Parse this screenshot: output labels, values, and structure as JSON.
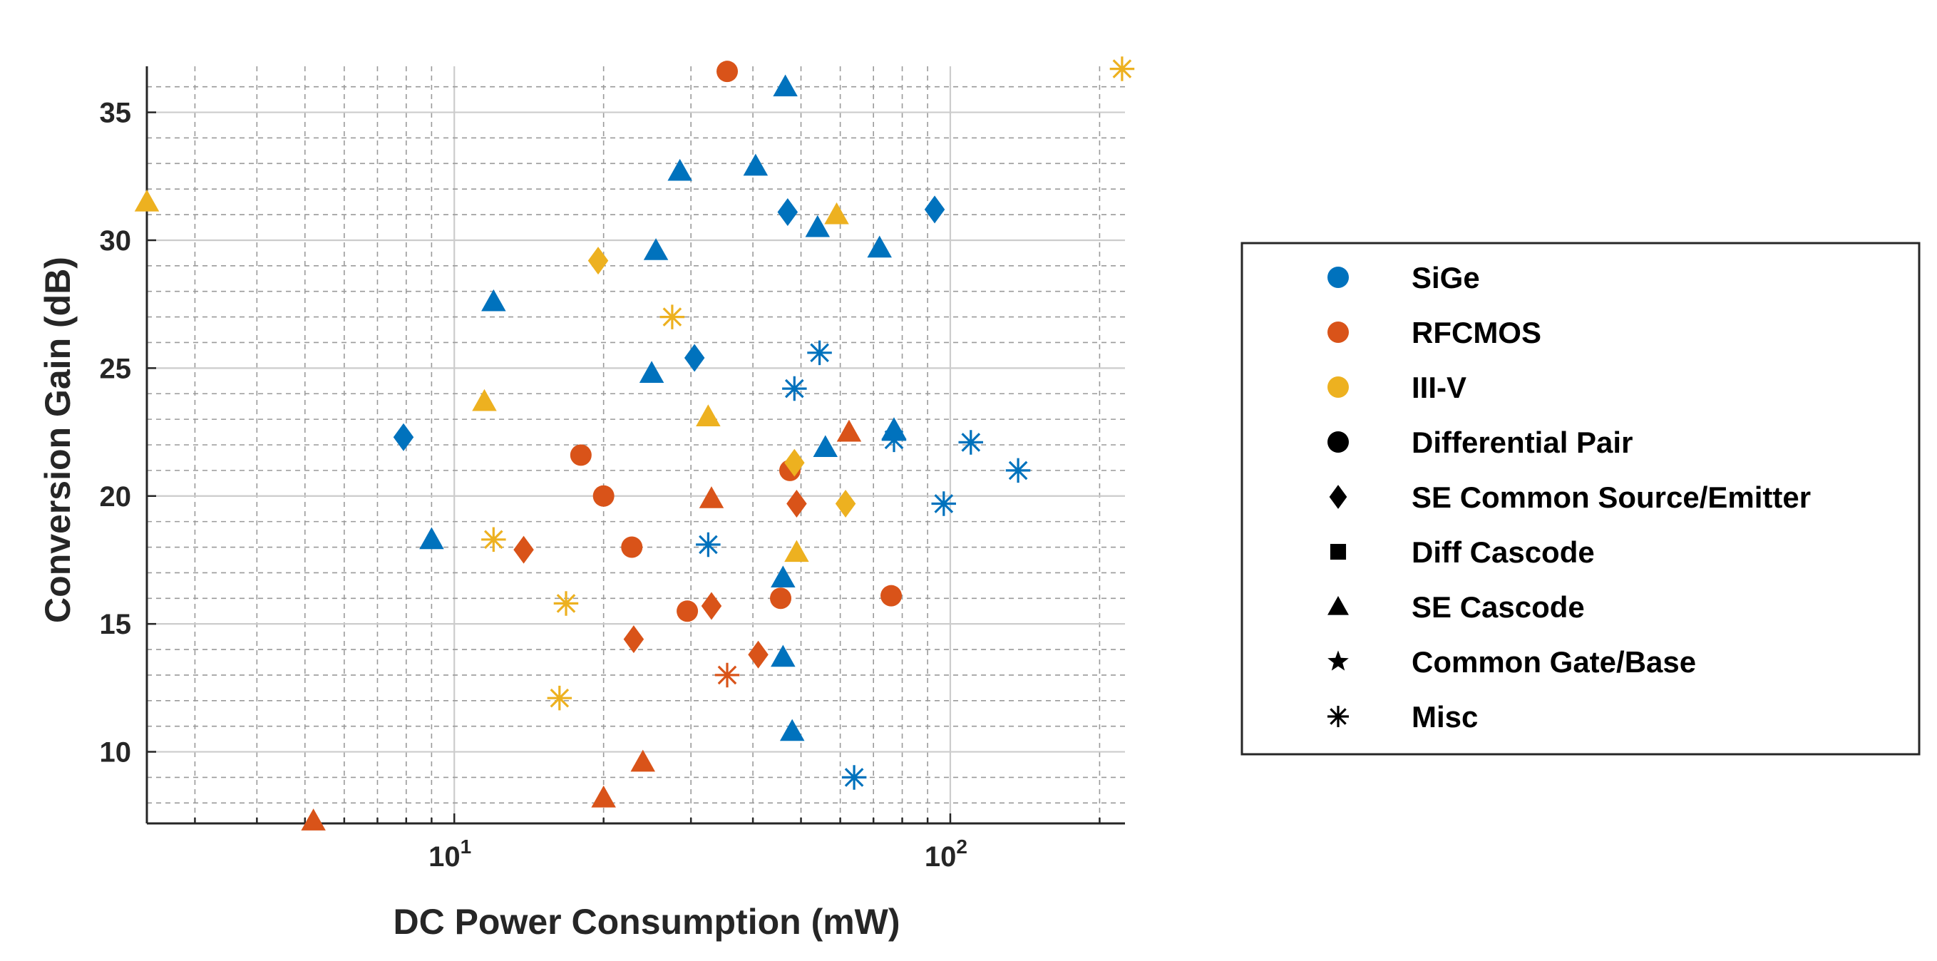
{
  "chart_data": {
    "type": "scatter",
    "title": "",
    "xlabel": "DC Power Consumption (mW)",
    "ylabel": "Conversion Gain (dB)",
    "xscale": "log",
    "xlim": [
      2.4,
      225
    ],
    "ylim": [
      7.2,
      36.8
    ],
    "xticks": [
      {
        "value": 10,
        "base": "10",
        "exp": "1"
      },
      {
        "value": 100,
        "base": "10",
        "exp": "2"
      }
    ],
    "yticks": [
      10,
      15,
      20,
      25,
      30,
      35
    ],
    "grid": true,
    "legend_position": "right",
    "colors": {
      "SiGe": "#0072bd",
      "RFCMOS": "#d95319",
      "III-V": "#edb120",
      "legend_marker": "#000000"
    },
    "legend": [
      {
        "label": "SiGe",
        "kind": "color",
        "key": "SiGe",
        "marker": "circle"
      },
      {
        "label": "RFCMOS",
        "kind": "color",
        "key": "RFCMOS",
        "marker": "circle"
      },
      {
        "label": "III-V",
        "kind": "color",
        "key": "III-V",
        "marker": "circle"
      },
      {
        "label": "Differential Pair",
        "kind": "marker",
        "marker": "circle"
      },
      {
        "label": "SE Common Source/Emitter",
        "kind": "marker",
        "marker": "diamond"
      },
      {
        "label": "Diff Cascode",
        "kind": "marker",
        "marker": "square"
      },
      {
        "label": "SE Cascode",
        "kind": "marker",
        "marker": "triangle"
      },
      {
        "label": "Common Gate/Base",
        "kind": "marker",
        "marker": "star"
      },
      {
        "label": "Misc",
        "kind": "marker",
        "marker": "asterisk"
      }
    ],
    "points": [
      {
        "tech": "SiGe",
        "topology": "triangle",
        "x": 46.5,
        "y": 36.0
      },
      {
        "tech": "SiGe",
        "topology": "triangle",
        "x": 28.5,
        "y": 32.7
      },
      {
        "tech": "SiGe",
        "topology": "triangle",
        "x": 40.5,
        "y": 32.9
      },
      {
        "tech": "SiGe",
        "topology": "diamond",
        "x": 47.0,
        "y": 31.1
      },
      {
        "tech": "SiGe",
        "topology": "diamond",
        "x": 93.0,
        "y": 31.2
      },
      {
        "tech": "SiGe",
        "topology": "triangle",
        "x": 54.0,
        "y": 30.5
      },
      {
        "tech": "SiGe",
        "topology": "triangle",
        "x": 72.0,
        "y": 29.7
      },
      {
        "tech": "SiGe",
        "topology": "triangle",
        "x": 25.5,
        "y": 29.6
      },
      {
        "tech": "SiGe",
        "topology": "triangle",
        "x": 12.0,
        "y": 27.6
      },
      {
        "tech": "SiGe",
        "topology": "asterisk",
        "x": 54.5,
        "y": 25.6
      },
      {
        "tech": "SiGe",
        "topology": "diamond",
        "x": 30.5,
        "y": 25.4
      },
      {
        "tech": "SiGe",
        "topology": "triangle",
        "x": 25.0,
        "y": 24.8
      },
      {
        "tech": "SiGe",
        "topology": "asterisk",
        "x": 48.5,
        "y": 24.2
      },
      {
        "tech": "SiGe",
        "topology": "triangle",
        "x": 77.0,
        "y": 22.6
      },
      {
        "tech": "SiGe",
        "topology": "diamond",
        "x": 7.9,
        "y": 22.3
      },
      {
        "tech": "SiGe",
        "topology": "asterisk",
        "x": 77.0,
        "y": 22.2
      },
      {
        "tech": "SiGe",
        "topology": "asterisk",
        "x": 110.0,
        "y": 22.1
      },
      {
        "tech": "SiGe",
        "topology": "triangle",
        "x": 56.0,
        "y": 21.9
      },
      {
        "tech": "SiGe",
        "topology": "asterisk",
        "x": 137.0,
        "y": 21.0
      },
      {
        "tech": "SiGe",
        "topology": "asterisk",
        "x": 97.0,
        "y": 19.7
      },
      {
        "tech": "SiGe",
        "topology": "triangle",
        "x": 9.0,
        "y": 18.3
      },
      {
        "tech": "SiGe",
        "topology": "asterisk",
        "x": 32.5,
        "y": 18.1
      },
      {
        "tech": "SiGe",
        "topology": "triangle",
        "x": 46.0,
        "y": 16.8
      },
      {
        "tech": "SiGe",
        "topology": "triangle",
        "x": 46.0,
        "y": 13.7
      },
      {
        "tech": "SiGe",
        "topology": "triangle",
        "x": 48.0,
        "y": 10.8
      },
      {
        "tech": "SiGe",
        "topology": "asterisk",
        "x": 64.0,
        "y": 9.0
      },
      {
        "tech": "RFCMOS",
        "topology": "circle",
        "x": 35.5,
        "y": 36.6
      },
      {
        "tech": "RFCMOS",
        "topology": "triangle",
        "x": 62.5,
        "y": 22.5
      },
      {
        "tech": "RFCMOS",
        "topology": "circle",
        "x": 18.0,
        "y": 21.6
      },
      {
        "tech": "RFCMOS",
        "topology": "circle",
        "x": 47.5,
        "y": 21.0
      },
      {
        "tech": "RFCMOS",
        "topology": "circle",
        "x": 20.0,
        "y": 20.0
      },
      {
        "tech": "RFCMOS",
        "topology": "triangle",
        "x": 33.0,
        "y": 19.9
      },
      {
        "tech": "RFCMOS",
        "topology": "diamond",
        "x": 49.0,
        "y": 19.7
      },
      {
        "tech": "RFCMOS",
        "topology": "circle",
        "x": 22.8,
        "y": 18.0
      },
      {
        "tech": "RFCMOS",
        "topology": "diamond",
        "x": 13.8,
        "y": 17.9
      },
      {
        "tech": "RFCMOS",
        "topology": "circle",
        "x": 45.5,
        "y": 16.0
      },
      {
        "tech": "RFCMOS",
        "topology": "circle",
        "x": 76.0,
        "y": 16.1
      },
      {
        "tech": "RFCMOS",
        "topology": "diamond",
        "x": 33.0,
        "y": 15.7
      },
      {
        "tech": "RFCMOS",
        "topology": "circle",
        "x": 29.5,
        "y": 15.5
      },
      {
        "tech": "RFCMOS",
        "topology": "diamond",
        "x": 23.0,
        "y": 14.4
      },
      {
        "tech": "RFCMOS",
        "topology": "diamond",
        "x": 41.0,
        "y": 13.8
      },
      {
        "tech": "RFCMOS",
        "topology": "asterisk",
        "x": 35.5,
        "y": 13.0
      },
      {
        "tech": "RFCMOS",
        "topology": "triangle",
        "x": 24.0,
        "y": 9.6
      },
      {
        "tech": "RFCMOS",
        "topology": "triangle",
        "x": 20.0,
        "y": 8.2
      },
      {
        "tech": "RFCMOS",
        "topology": "triangle",
        "x": 5.2,
        "y": 7.3
      },
      {
        "tech": "III-V",
        "topology": "asterisk",
        "x": 222.0,
        "y": 36.7
      },
      {
        "tech": "III-V",
        "topology": "triangle",
        "x": 2.4,
        "y": 31.5
      },
      {
        "tech": "III-V",
        "topology": "triangle",
        "x": 59.0,
        "y": 31.0
      },
      {
        "tech": "III-V",
        "topology": "diamond",
        "x": 19.5,
        "y": 29.2
      },
      {
        "tech": "III-V",
        "topology": "asterisk",
        "x": 27.5,
        "y": 27.0
      },
      {
        "tech": "III-V",
        "topology": "triangle",
        "x": 11.5,
        "y": 23.7
      },
      {
        "tech": "III-V",
        "topology": "triangle",
        "x": 32.5,
        "y": 23.1
      },
      {
        "tech": "III-V",
        "topology": "diamond",
        "x": 48.5,
        "y": 21.3
      },
      {
        "tech": "III-V",
        "topology": "diamond",
        "x": 61.5,
        "y": 19.7
      },
      {
        "tech": "III-V",
        "topology": "asterisk",
        "x": 12.0,
        "y": 18.3
      },
      {
        "tech": "III-V",
        "topology": "triangle",
        "x": 49.0,
        "y": 17.8
      },
      {
        "tech": "III-V",
        "topology": "asterisk",
        "x": 16.8,
        "y": 15.8
      },
      {
        "tech": "III-V",
        "topology": "asterisk",
        "x": 16.3,
        "y": 12.1
      }
    ]
  }
}
